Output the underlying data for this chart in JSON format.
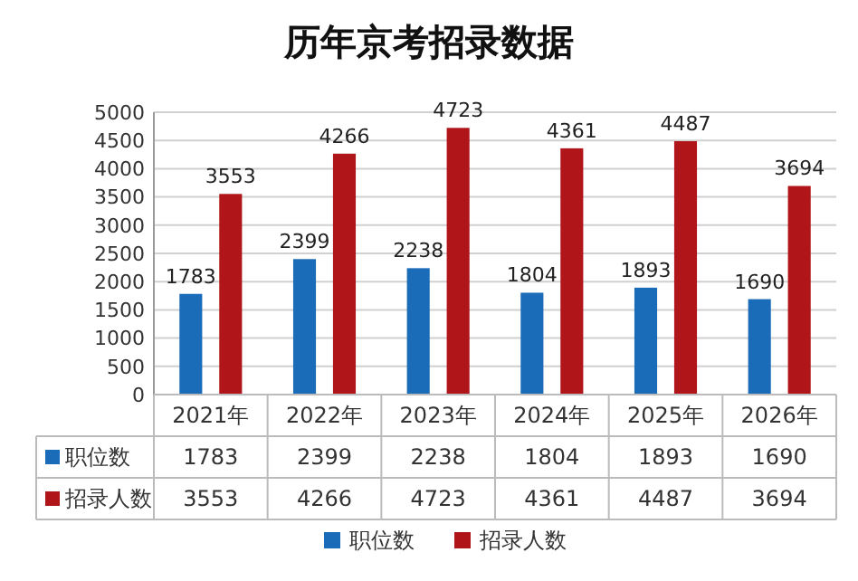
{
  "chart_data": {
    "type": "bar",
    "title": "历年京考招录数据",
    "categories": [
      "2021年",
      "2022年",
      "2023年",
      "2024年",
      "2025年",
      "2026年"
    ],
    "series": [
      {
        "name": "职位数",
        "color": "#1b6cb8",
        "values": [
          1783,
          2399,
          2238,
          1804,
          1893,
          1690
        ]
      },
      {
        "name": "招录人数",
        "color": "#b0151a",
        "values": [
          3553,
          4266,
          4723,
          4361,
          4487,
          3694
        ]
      }
    ],
    "ylim": [
      0,
      5000
    ],
    "yticks": [
      0,
      500,
      1000,
      1500,
      2000,
      2500,
      3000,
      3500,
      4000,
      4500,
      5000
    ],
    "annotations": [
      {
        "text": "1783",
        "x": "2021年",
        "y": 1783
      },
      {
        "text": "2399",
        "x": "2022年",
        "y": 2399
      },
      {
        "text": "2238",
        "x": "2023年",
        "y": 2238
      },
      {
        "text": "1804",
        "x": "2024年",
        "y": 1804
      },
      {
        "text": "1893",
        "x": "2025年",
        "y": 1893
      },
      {
        "text": "1690",
        "x": "2026年",
        "y": 1690
      },
      {
        "text": "3553",
        "x": "2021年",
        "y": 3553
      },
      {
        "text": "4266",
        "x": "2022年",
        "y": 4266
      },
      {
        "text": "4723",
        "x": "2023年",
        "y": 4723
      },
      {
        "text": "4361",
        "x": "2024年",
        "y": 4361
      },
      {
        "text": "4487",
        "x": "2025年",
        "y": 4487
      },
      {
        "text": "3694",
        "x": "2026年",
        "y": 3694
      }
    ],
    "grid": "y",
    "data_labels": true,
    "legend": "bottom"
  }
}
